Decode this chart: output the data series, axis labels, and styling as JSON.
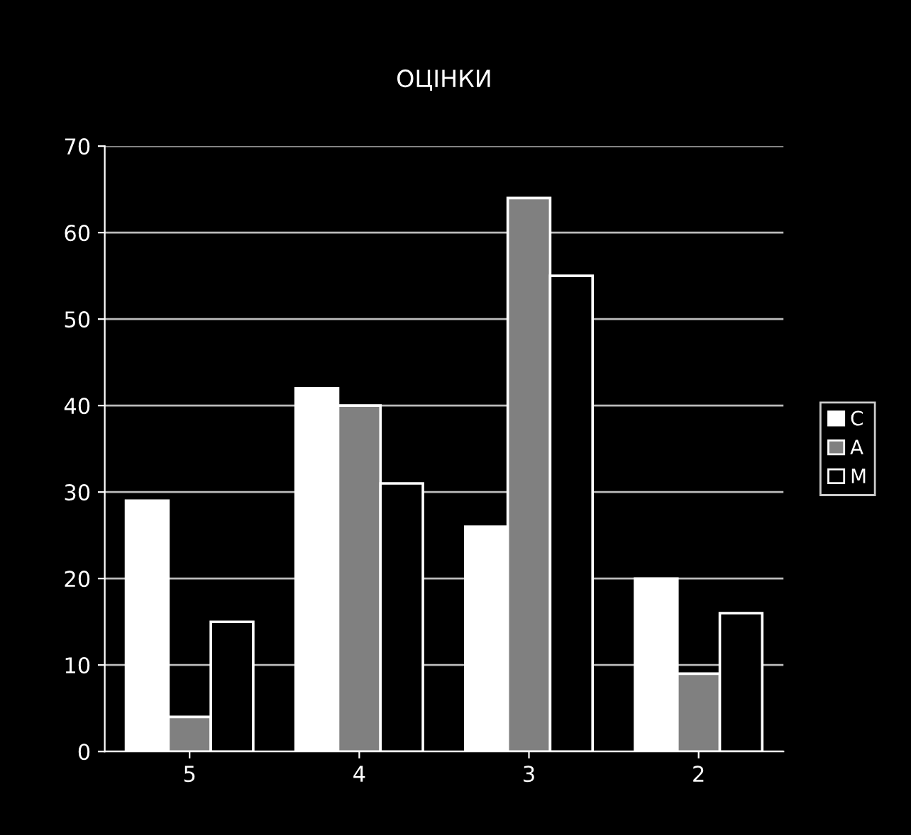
{
  "chart_data": {
    "type": "bar",
    "title": "ОЦІНКИ",
    "categories": [
      "5",
      "4",
      "3",
      "2"
    ],
    "series": [
      {
        "name": "С",
        "color": "#ffffff",
        "values": [
          29,
          42,
          26,
          20
        ]
      },
      {
        "name": "А",
        "color": "#808080",
        "values": [
          4,
          40,
          64,
          9
        ]
      },
      {
        "name": "М",
        "color": "#000000",
        "values": [
          15,
          31,
          55,
          16
        ]
      }
    ],
    "ylim": [
      0,
      70
    ],
    "yticks": [
      0,
      10,
      20,
      30,
      40,
      50,
      60,
      70
    ],
    "grid": "y",
    "legend": "right"
  }
}
